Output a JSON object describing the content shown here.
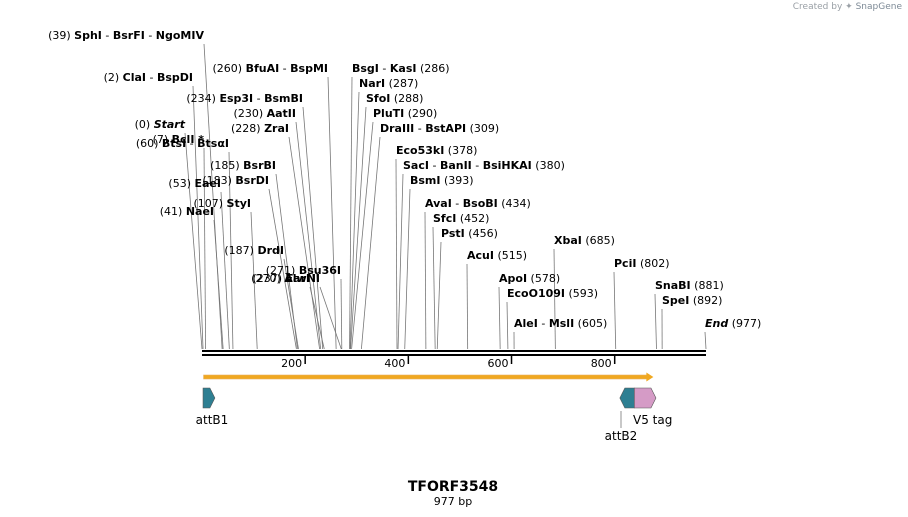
{
  "credit": {
    "prefix": "Created by",
    "brand": "SnapGene"
  },
  "sequence": {
    "name": "TFORF3548",
    "length_label": "977 bp",
    "length": 977
  },
  "ruler": {
    "ticks": [
      200,
      400,
      600,
      800
    ]
  },
  "sites": [
    {
      "pos": "(271)",
      "names": [
        "Bsu36I"
      ],
      "cut": 271
    },
    {
      "pos": "(270)",
      "names": [
        "AlwNI"
      ],
      "cut": 270
    },
    {
      "pos": "(260)",
      "names": [
        "BfuAI",
        "BspMI"
      ],
      "cut": 260
    },
    {
      "pos": "(237)",
      "names": [
        "EarI"
      ],
      "cut": 237
    },
    {
      "pos": "(234)",
      "names": [
        "Esp3I",
        "BsmBI"
      ],
      "cut": 234
    },
    {
      "pos": "(230)",
      "names": [
        "AatII"
      ],
      "cut": 230
    },
    {
      "pos": "(228)",
      "names": [
        "ZraI"
      ],
      "cut": 228
    },
    {
      "pos": "(187)",
      "names": [
        "DrdI"
      ],
      "cut": 187
    },
    {
      "pos": "(185)",
      "names": [
        "BsrBI"
      ],
      "cut": 185
    },
    {
      "pos": "(183)",
      "names": [
        "BsrDI"
      ],
      "cut": 183
    },
    {
      "pos": "(107)",
      "names": [
        "StyI"
      ],
      "cut": 107
    },
    {
      "pos": "(60)",
      "names": [
        "BtsI",
        "BtsαI"
      ],
      "cut": 60
    },
    {
      "pos": "(53)",
      "names": [
        "EaeI"
      ],
      "cut": 53
    },
    {
      "pos": "(41)",
      "names": [
        "NaeI"
      ],
      "cut": 41
    },
    {
      "pos": "(39)",
      "names": [
        "SphI",
        "BsrFI",
        "NgoMIV"
      ],
      "cut": 39
    },
    {
      "pos": "(7)",
      "names": [
        "BclI *"
      ],
      "cut": 7
    },
    {
      "pos": "(2)",
      "names": [
        "ClaI",
        "BspDI"
      ],
      "cut": 2
    },
    {
      "pos": "(0)",
      "names": [
        "Start"
      ],
      "cut": 0,
      "italic": true
    },
    {
      "pos": "(286)",
      "names": [
        "BsgI",
        "KasI"
      ],
      "cut": 286
    },
    {
      "pos": "(287)",
      "names": [
        "NarI"
      ],
      "cut": 287
    },
    {
      "pos": "(288)",
      "names": [
        "SfoI"
      ],
      "cut": 288
    },
    {
      "pos": "(290)",
      "names": [
        "PluTI"
      ],
      "cut": 290
    },
    {
      "pos": "(309)",
      "names": [
        "DraIII",
        "BstAPI"
      ],
      "cut": 309
    },
    {
      "pos": "(378)",
      "names": [
        "Eco53kI"
      ],
      "cut": 378
    },
    {
      "pos": "(380)",
      "names": [
        "SacI",
        "BanII",
        "BsiHKAI"
      ],
      "cut": 380
    },
    {
      "pos": "(393)",
      "names": [
        "BsmI"
      ],
      "cut": 393
    },
    {
      "pos": "(434)",
      "names": [
        "AvaI",
        "BsoBI"
      ],
      "cut": 434
    },
    {
      "pos": "(452)",
      "names": [
        "SfcI"
      ],
      "cut": 452
    },
    {
      "pos": "(456)",
      "names": [
        "PstI"
      ],
      "cut": 456
    },
    {
      "pos": "(515)",
      "names": [
        "AcuI"
      ],
      "cut": 515
    },
    {
      "pos": "(685)",
      "names": [
        "XbaI"
      ],
      "cut": 685
    },
    {
      "pos": "(578)",
      "names": [
        "ApoI"
      ],
      "cut": 578
    },
    {
      "pos": "(593)",
      "names": [
        "EcoO109I"
      ],
      "cut": 593
    },
    {
      "pos": "(605)",
      "names": [
        "AleI",
        "MslI"
      ],
      "cut": 605
    },
    {
      "pos": "(802)",
      "names": [
        "PciI"
      ],
      "cut": 802
    },
    {
      "pos": "(881)",
      "names": [
        "SnaBI"
      ],
      "cut": 881
    },
    {
      "pos": "(892)",
      "names": [
        "SpeI"
      ],
      "cut": 892
    },
    {
      "pos": "(977)",
      "names": [
        "End"
      ],
      "cut": 977,
      "italic": true
    }
  ],
  "orf": {
    "start": 3,
    "end": 875,
    "color": "#f0a820"
  },
  "features": [
    {
      "label": "attB1",
      "start": 2,
      "end": 25,
      "direction": "forward",
      "color": "#2e7f92"
    },
    {
      "label": "attB2",
      "start": 810,
      "end": 838,
      "direction": "reverse",
      "color": "#2e7f92"
    },
    {
      "label": "V5 tag",
      "start": 838,
      "end": 880,
      "direction": "forward",
      "color": "#d59bc6"
    }
  ]
}
